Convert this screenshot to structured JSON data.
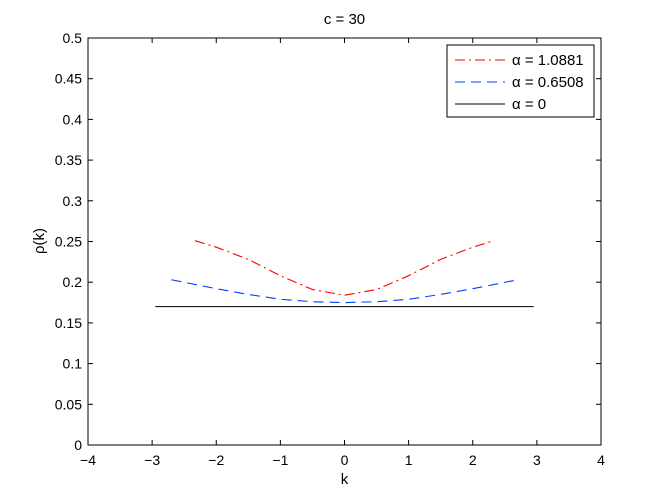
{
  "chart_data": {
    "type": "line",
    "title": "c = 30",
    "xlabel": "k",
    "ylabel": "ρ(k)",
    "xlim": [
      -4,
      4
    ],
    "ylim": [
      0,
      0.5
    ],
    "xticks": [
      -4,
      -3,
      -2,
      -1,
      0,
      1,
      2,
      3,
      4
    ],
    "xtick_labels": [
      "−4",
      "−3",
      "−2",
      "−1",
      "0",
      "1",
      "2",
      "3",
      "4"
    ],
    "yticks": [
      0,
      0.05,
      0.1,
      0.15,
      0.2,
      0.25,
      0.3,
      0.35,
      0.4,
      0.45,
      0.5
    ],
    "ytick_labels": [
      "0",
      "0.05",
      "0.1",
      "0.15",
      "0.2",
      "0.25",
      "0.3",
      "0.35",
      "0.4",
      "0.45",
      "0.5"
    ],
    "grid": false,
    "legend_position": "top-right",
    "series": [
      {
        "name": "α = 1.0881",
        "color": "#ff0000",
        "style": "dash-dot",
        "x": [
          -2.33,
          -2.0,
          -1.5,
          -1.0,
          -0.5,
          0.0,
          0.5,
          1.0,
          1.5,
          2.0,
          2.33
        ],
        "y": [
          0.251,
          0.243,
          0.228,
          0.208,
          0.191,
          0.184,
          0.191,
          0.208,
          0.228,
          0.243,
          0.251
        ]
      },
      {
        "name": "α = 0.6508",
        "color": "#0040ff",
        "style": "dash",
        "x": [
          -2.7,
          -2.0,
          -1.5,
          -1.0,
          -0.5,
          0.0,
          0.5,
          1.0,
          1.5,
          2.0,
          2.7
        ],
        "y": [
          0.203,
          0.192,
          0.185,
          0.179,
          0.176,
          0.175,
          0.176,
          0.179,
          0.185,
          0.192,
          0.203
        ]
      },
      {
        "name": "α = 0",
        "color": "#000000",
        "style": "solid",
        "x": [
          -2.95,
          2.95
        ],
        "y": [
          0.17,
          0.17
        ]
      }
    ]
  }
}
